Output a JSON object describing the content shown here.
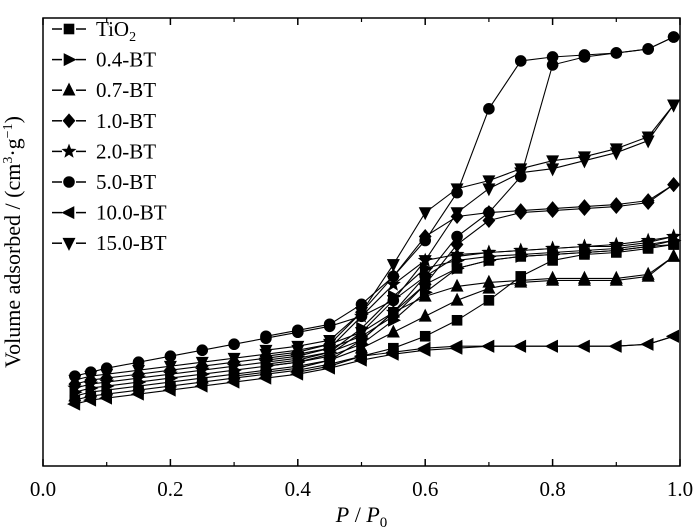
{
  "chart_data": {
    "type": "line",
    "title": "",
    "xlabel_parts": [
      "P",
      " / ",
      "P",
      "0"
    ],
    "ylabel_parts": [
      "Volume adsorbed / (cm",
      "3",
      "·g",
      "−1",
      ")"
    ],
    "xlim": [
      0.0,
      1.0
    ],
    "ylim": [
      0,
      100
    ],
    "y_ticks_shown": false,
    "x_ticks": [
      "0.0",
      "0.2",
      "0.4",
      "0.6",
      "0.8",
      "1.0"
    ],
    "legend_position": "top-left",
    "series": [
      {
        "name": "TiO2",
        "label_main": "TiO",
        "label_sub": "2",
        "marker": "square",
        "adsorption": [
          [
            0.05,
            9
          ],
          [
            0.075,
            10
          ],
          [
            0.1,
            10.5
          ],
          [
            0.15,
            11.5
          ],
          [
            0.2,
            12.5
          ],
          [
            0.25,
            13.5
          ],
          [
            0.3,
            14.5
          ],
          [
            0.35,
            15.5
          ],
          [
            0.4,
            16.5
          ],
          [
            0.45,
            18
          ],
          [
            0.5,
            20
          ],
          [
            0.55,
            22
          ],
          [
            0.6,
            25
          ],
          [
            0.65,
            29
          ],
          [
            0.7,
            34
          ],
          [
            0.75,
            40
          ],
          [
            0.8,
            44
          ],
          [
            0.85,
            45.5
          ],
          [
            0.9,
            46
          ],
          [
            0.95,
            47
          ],
          [
            0.99,
            48
          ]
        ],
        "desorption": [
          [
            0.99,
            48
          ],
          [
            0.95,
            47.5
          ],
          [
            0.9,
            46.5
          ],
          [
            0.85,
            46
          ],
          [
            0.8,
            45.5
          ],
          [
            0.75,
            45
          ],
          [
            0.7,
            44
          ],
          [
            0.65,
            42
          ],
          [
            0.6,
            38
          ],
          [
            0.55,
            31
          ],
          [
            0.5,
            24
          ],
          [
            0.45,
            19
          ],
          [
            0.4,
            17
          ],
          [
            0.35,
            16
          ],
          [
            0.3,
            15
          ]
        ]
      },
      {
        "name": "0.4-BT",
        "label_main": "0.4-BT",
        "label_sub": "",
        "marker": "triangle-right",
        "adsorption": [
          [
            0.05,
            11
          ],
          [
            0.075,
            12
          ],
          [
            0.1,
            12.5
          ],
          [
            0.15,
            13.5
          ],
          [
            0.2,
            14.5
          ],
          [
            0.25,
            15.5
          ],
          [
            0.3,
            16.5
          ],
          [
            0.35,
            17.5
          ],
          [
            0.4,
            18.5
          ],
          [
            0.45,
            20
          ],
          [
            0.5,
            23
          ],
          [
            0.55,
            29
          ],
          [
            0.6,
            36
          ],
          [
            0.65,
            42
          ],
          [
            0.7,
            44
          ],
          [
            0.75,
            45
          ],
          [
            0.8,
            45.5
          ],
          [
            0.85,
            46
          ],
          [
            0.9,
            46.5
          ],
          [
            0.95,
            47.5
          ],
          [
            0.99,
            49
          ]
        ],
        "desorption": [
          [
            0.99,
            49
          ],
          [
            0.95,
            48
          ],
          [
            0.9,
            47
          ],
          [
            0.85,
            46.5
          ],
          [
            0.8,
            46
          ],
          [
            0.75,
            45.5
          ],
          [
            0.7,
            45
          ],
          [
            0.65,
            44
          ],
          [
            0.6,
            42
          ],
          [
            0.55,
            35
          ],
          [
            0.5,
            27
          ],
          [
            0.45,
            21
          ],
          [
            0.4,
            19
          ],
          [
            0.35,
            18
          ]
        ]
      },
      {
        "name": "0.7-BT",
        "label_main": "0.7-BT",
        "label_sub": "",
        "marker": "triangle-up",
        "adsorption": [
          [
            0.05,
            10
          ],
          [
            0.075,
            11
          ],
          [
            0.1,
            11.5
          ],
          [
            0.15,
            12.5
          ],
          [
            0.2,
            13.5
          ],
          [
            0.25,
            14.5
          ],
          [
            0.3,
            15.5
          ],
          [
            0.35,
            16.5
          ],
          [
            0.4,
            17.5
          ],
          [
            0.45,
            19
          ],
          [
            0.5,
            22
          ],
          [
            0.55,
            26
          ],
          [
            0.6,
            30
          ],
          [
            0.65,
            34
          ],
          [
            0.7,
            37
          ],
          [
            0.75,
            38.5
          ],
          [
            0.8,
            39
          ],
          [
            0.85,
            39
          ],
          [
            0.9,
            39
          ],
          [
            0.95,
            40
          ],
          [
            0.99,
            45
          ]
        ],
        "desorption": [
          [
            0.99,
            45
          ],
          [
            0.95,
            40.5
          ],
          [
            0.9,
            39.5
          ],
          [
            0.85,
            39.5
          ],
          [
            0.8,
            39.5
          ],
          [
            0.75,
            39
          ],
          [
            0.7,
            38.5
          ],
          [
            0.65,
            37.5
          ],
          [
            0.6,
            35
          ],
          [
            0.55,
            31
          ],
          [
            0.5,
            26
          ],
          [
            0.45,
            20.5
          ],
          [
            0.4,
            18.5
          ],
          [
            0.35,
            17.5
          ]
        ]
      },
      {
        "name": "1.0-BT",
        "label_main": "1.0-BT",
        "label_sub": "",
        "marker": "diamond",
        "adsorption": [
          [
            0.05,
            13
          ],
          [
            0.075,
            14
          ],
          [
            0.1,
            14.5
          ],
          [
            0.15,
            15.5
          ],
          [
            0.2,
            16.5
          ],
          [
            0.25,
            17.5
          ],
          [
            0.3,
            18.5
          ],
          [
            0.35,
            19.5
          ],
          [
            0.4,
            20.5
          ],
          [
            0.45,
            22
          ],
          [
            0.5,
            25
          ],
          [
            0.55,
            30
          ],
          [
            0.6,
            38
          ],
          [
            0.65,
            48
          ],
          [
            0.7,
            54
          ],
          [
            0.75,
            56
          ],
          [
            0.8,
            56.5
          ],
          [
            0.85,
            57
          ],
          [
            0.9,
            57.5
          ],
          [
            0.95,
            58.5
          ],
          [
            0.99,
            63
          ]
        ],
        "desorption": [
          [
            0.99,
            63
          ],
          [
            0.95,
            59
          ],
          [
            0.9,
            58
          ],
          [
            0.85,
            57.5
          ],
          [
            0.8,
            57
          ],
          [
            0.75,
            56.5
          ],
          [
            0.7,
            56
          ],
          [
            0.65,
            55
          ],
          [
            0.6,
            50
          ],
          [
            0.55,
            40
          ],
          [
            0.5,
            31
          ],
          [
            0.45,
            23
          ],
          [
            0.4,
            21
          ],
          [
            0.35,
            20
          ]
        ]
      },
      {
        "name": "2.0-BT",
        "label_main": "2.0-BT",
        "label_sub": "",
        "marker": "star",
        "adsorption": [
          [
            0.05,
            12
          ],
          [
            0.075,
            13
          ],
          [
            0.1,
            13.5
          ],
          [
            0.15,
            14.5
          ],
          [
            0.2,
            15.5
          ],
          [
            0.25,
            16.5
          ],
          [
            0.3,
            17.5
          ],
          [
            0.35,
            18.5
          ],
          [
            0.4,
            19.5
          ],
          [
            0.45,
            21
          ],
          [
            0.5,
            24
          ],
          [
            0.55,
            31
          ],
          [
            0.6,
            40
          ],
          [
            0.65,
            45
          ],
          [
            0.7,
            46
          ],
          [
            0.75,
            46.5
          ],
          [
            0.8,
            47
          ],
          [
            0.85,
            47.5
          ],
          [
            0.9,
            47.5
          ],
          [
            0.95,
            48.5
          ],
          [
            0.99,
            50
          ]
        ],
        "desorption": [
          [
            0.99,
            50
          ],
          [
            0.95,
            49
          ],
          [
            0.9,
            48
          ],
          [
            0.85,
            47.5
          ],
          [
            0.8,
            47
          ],
          [
            0.75,
            46.5
          ],
          [
            0.7,
            46
          ],
          [
            0.65,
            45.5
          ],
          [
            0.6,
            44
          ],
          [
            0.55,
            38
          ],
          [
            0.5,
            30
          ],
          [
            0.45,
            22
          ],
          [
            0.4,
            20
          ],
          [
            0.35,
            19
          ]
        ]
      },
      {
        "name": "5.0-BT",
        "label_main": "5.0-BT",
        "label_sub": "",
        "marker": "circle",
        "adsorption": [
          [
            0.05,
            15
          ],
          [
            0.075,
            16
          ],
          [
            0.1,
            17
          ],
          [
            0.15,
            18.5
          ],
          [
            0.2,
            20
          ],
          [
            0.25,
            21.5
          ],
          [
            0.3,
            23
          ],
          [
            0.35,
            24.5
          ],
          [
            0.4,
            26
          ],
          [
            0.45,
            27.5
          ],
          [
            0.5,
            30
          ],
          [
            0.55,
            34
          ],
          [
            0.6,
            40
          ],
          [
            0.65,
            50
          ],
          [
            0.7,
            56
          ],
          [
            0.75,
            65
          ],
          [
            0.8,
            93
          ],
          [
            0.85,
            95
          ],
          [
            0.9,
            96
          ],
          [
            0.95,
            97
          ],
          [
            0.99,
            100
          ]
        ],
        "desorption": [
          [
            0.99,
            100
          ],
          [
            0.95,
            97
          ],
          [
            0.9,
            96
          ],
          [
            0.85,
            95.5
          ],
          [
            0.8,
            95
          ],
          [
            0.75,
            94
          ],
          [
            0.7,
            82
          ],
          [
            0.65,
            61
          ],
          [
            0.6,
            49
          ],
          [
            0.55,
            40
          ],
          [
            0.5,
            33
          ],
          [
            0.45,
            28
          ],
          [
            0.4,
            26.5
          ],
          [
            0.35,
            25
          ]
        ]
      },
      {
        "name": "10.0-BT",
        "label_main": "10.0-BT",
        "label_sub": "",
        "marker": "triangle-left",
        "adsorption": [
          [
            0.05,
            8
          ],
          [
            0.075,
            9
          ],
          [
            0.1,
            9.5
          ],
          [
            0.15,
            10.5
          ],
          [
            0.2,
            11.5
          ],
          [
            0.25,
            12.5
          ],
          [
            0.3,
            13.5
          ],
          [
            0.35,
            14.5
          ],
          [
            0.4,
            15.5
          ],
          [
            0.45,
            17
          ],
          [
            0.5,
            19
          ],
          [
            0.55,
            20.5
          ],
          [
            0.6,
            21.5
          ],
          [
            0.65,
            22
          ],
          [
            0.7,
            22.5
          ],
          [
            0.75,
            22.5
          ],
          [
            0.8,
            22.5
          ],
          [
            0.85,
            22.5
          ],
          [
            0.9,
            22.5
          ],
          [
            0.95,
            23
          ],
          [
            0.99,
            25
          ]
        ],
        "desorption": [
          [
            0.99,
            25
          ],
          [
            0.95,
            23
          ],
          [
            0.9,
            22.5
          ],
          [
            0.85,
            22.5
          ],
          [
            0.8,
            22.5
          ],
          [
            0.75,
            22.5
          ],
          [
            0.7,
            22.5
          ],
          [
            0.65,
            22.5
          ],
          [
            0.6,
            22
          ],
          [
            0.55,
            21
          ],
          [
            0.5,
            20
          ],
          [
            0.45,
            17.5
          ],
          [
            0.4,
            16
          ]
        ]
      },
      {
        "name": "15.0-BT",
        "label_main": "15.0-BT",
        "label_sub": "",
        "marker": "triangle-down",
        "adsorption": [
          [
            0.05,
            14
          ],
          [
            0.075,
            15
          ],
          [
            0.1,
            15.5
          ],
          [
            0.15,
            16.5
          ],
          [
            0.2,
            17.5
          ],
          [
            0.25,
            18.5
          ],
          [
            0.3,
            19.5
          ],
          [
            0.35,
            20.5
          ],
          [
            0.4,
            21.5
          ],
          [
            0.45,
            23
          ],
          [
            0.5,
            26
          ],
          [
            0.55,
            34
          ],
          [
            0.6,
            44
          ],
          [
            0.65,
            56
          ],
          [
            0.7,
            62
          ],
          [
            0.75,
            66
          ],
          [
            0.8,
            67
          ],
          [
            0.85,
            69
          ],
          [
            0.9,
            71
          ],
          [
            0.95,
            74
          ],
          [
            0.99,
            83
          ]
        ],
        "desorption": [
          [
            0.99,
            83
          ],
          [
            0.95,
            75
          ],
          [
            0.9,
            72
          ],
          [
            0.85,
            70
          ],
          [
            0.8,
            69
          ],
          [
            0.75,
            67
          ],
          [
            0.7,
            64
          ],
          [
            0.65,
            62
          ],
          [
            0.6,
            56
          ],
          [
            0.55,
            43
          ],
          [
            0.5,
            31
          ],
          [
            0.45,
            24
          ],
          [
            0.4,
            22.5
          ],
          [
            0.35,
            21.5
          ]
        ]
      }
    ]
  }
}
